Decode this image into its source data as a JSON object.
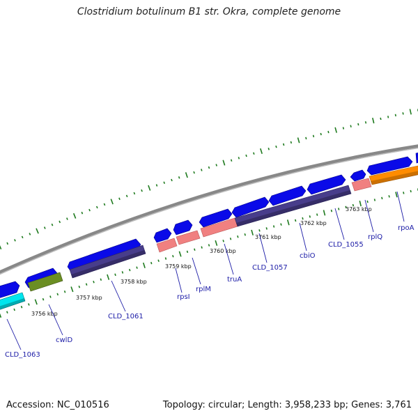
{
  "header": {
    "title": "Clostridium botulinum B1 str. Okra, complete genome"
  },
  "footer": {
    "accession": "Accession: NC_010516",
    "topology": "Topology: circular; Length: 3,958,233 bp; Genes: 3,761"
  },
  "map": {
    "backbone_color": "#8c8c8c",
    "dot_track_color": "#1e7a1e",
    "label_color": "#1a1aa6",
    "ticks": [
      "3756 kbp",
      "3757 kbp",
      "3758 kbp",
      "3759 kbp",
      "3760 kbp",
      "3761 kbp",
      "3762 kbp",
      "3763 kbp"
    ],
    "genes": [
      {
        "name": "CLD_1063",
        "category_color": "#00e5ee"
      },
      {
        "name": "cwlD",
        "category_color": "#6b8e23"
      },
      {
        "name": "CLD_1061",
        "category_color": "#483d8b"
      },
      {
        "name": "rpsI",
        "category_color": "#f08080"
      },
      {
        "name": "rplM",
        "category_color": "#f08080"
      },
      {
        "name": "truA",
        "category_color": "#f08080"
      },
      {
        "name": "CLD_1057",
        "category_color": "#483d8b"
      },
      {
        "name": "cbiO",
        "category_color": "#483d8b"
      },
      {
        "name": "CLD_1055",
        "category_color": "#483d8b"
      },
      {
        "name": "rplQ",
        "category_color": "#f08080"
      },
      {
        "name": "rpoA",
        "category_color": "#ff8c00"
      }
    ]
  }
}
